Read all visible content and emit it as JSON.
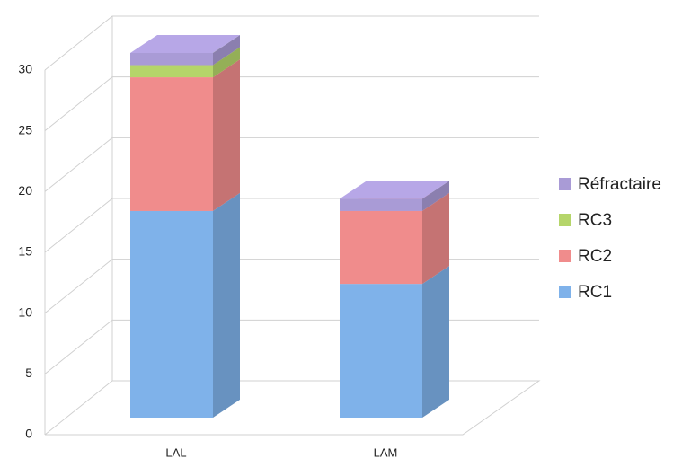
{
  "chart_data": {
    "type": "bar3d_stacked",
    "categories": [
      "LAL",
      "LAM"
    ],
    "series": [
      {
        "name": "RC1",
        "color": "#7fb2ea",
        "values": [
          17,
          11
        ]
      },
      {
        "name": "RC2",
        "color": "#f08c8c",
        "values": [
          11,
          6
        ]
      },
      {
        "name": "RC3",
        "color": "#b5d56a",
        "values": [
          1,
          0
        ]
      },
      {
        "name": "Réfractaire",
        "color": "#a99bd6",
        "values": [
          1,
          1
        ]
      }
    ],
    "ylim": [
      0,
      30
    ],
    "yticks": [
      0,
      5,
      10,
      15,
      20,
      25,
      30
    ],
    "grid": true,
    "legend": "right"
  }
}
